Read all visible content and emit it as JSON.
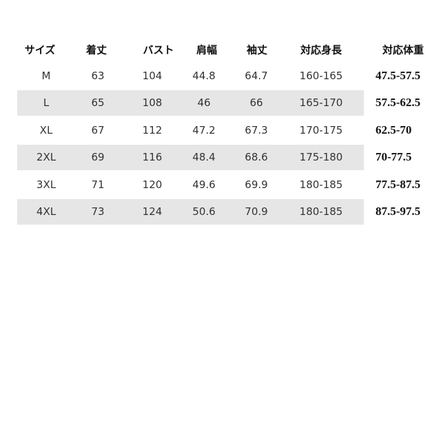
{
  "table": {
    "header": [
      "サイズ",
      "着丈",
      "バスト",
      "肩幅",
      "袖丈",
      "対応身長",
      "対応体重"
    ],
    "rows": [
      [
        "M",
        "63",
        "104",
        "44.8",
        "64.7",
        "160-165",
        "47.5-57.5"
      ],
      [
        "L",
        "65",
        "108",
        "46",
        "66",
        "165-170",
        "57.5-62.5"
      ],
      [
        "XL",
        "67",
        "112",
        "47.2",
        "67.3",
        "170-175",
        "62.5-70"
      ],
      [
        "2XL",
        "69",
        "116",
        "48.4",
        "68.6",
        "175-180",
        "70-77.5"
      ],
      [
        "3XL",
        "71",
        "120",
        "49.6",
        "69.9",
        "180-185",
        "77.5-87.5"
      ],
      [
        "4XL",
        "73",
        "124",
        "50.6",
        "70.9",
        "180-185",
        "87.5-97.5"
      ]
    ]
  }
}
